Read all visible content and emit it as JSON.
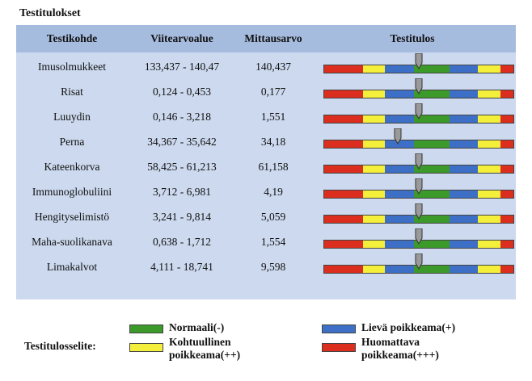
{
  "title": "Testitulokset",
  "columns": [
    "Testikohde",
    "Viitearvoalue",
    "Mittausarvo",
    "Testitulos"
  ],
  "rows": [
    {
      "item": "Imusolmukkeet",
      "range": "133,437 - 140,47",
      "value": "140,437",
      "position": 0.5
    },
    {
      "item": "Risat",
      "range": "0,124 - 0,453",
      "value": "0,177",
      "position": 0.5
    },
    {
      "item": "Luuydin",
      "range": "0,146 - 3,218",
      "value": "1,551",
      "position": 0.5
    },
    {
      "item": "Perna",
      "range": "34,367 - 35,642",
      "value": "34,18",
      "position": 0.39
    },
    {
      "item": "Kateenkorva",
      "range": "58,425 - 61,213",
      "value": "61,158",
      "position": 0.5
    },
    {
      "item": "Immunoglobuliini",
      "range": "3,712 - 6,981",
      "value": "4,19",
      "position": 0.5
    },
    {
      "item": "Hengityselimistö",
      "range": "3,241 - 9,814",
      "value": "5,059",
      "position": 0.5
    },
    {
      "item": "Maha-suolikanava",
      "range": "0,638 - 1,712",
      "value": "1,554",
      "position": 0.5
    },
    {
      "item": "Limakalvot",
      "range": "4,111 - 18,741",
      "value": "9,598",
      "position": 0.5
    }
  ],
  "legend": {
    "title": "Testitulosselite:",
    "normal": "Normaali(-)",
    "mild": "Lievä poikkeama(+)",
    "moderate_line1": "Kohtuullinen",
    "moderate_line2": "poikkeama(++)",
    "significant_line1": "Huomattava",
    "significant_line2": "poikkeama(+++)"
  },
  "colors": {
    "header": "#a6bcdf",
    "panel": "#ccd9ee",
    "normal": "#3c9a2a",
    "mild": "#3d6fc6",
    "moderate": "#f4ef3a",
    "significant": "#dc2e1e",
    "marker": "#9a9a9a"
  }
}
